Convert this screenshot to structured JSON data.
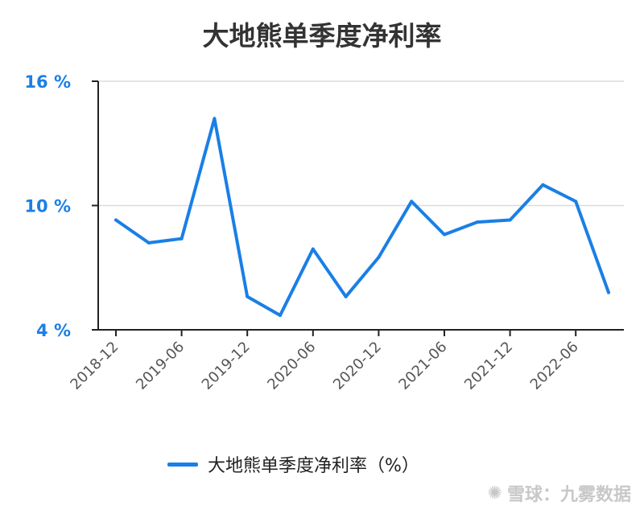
{
  "chart_data": {
    "type": "line",
    "title": "大地熊单季度净利率",
    "xlabel": "",
    "ylabel": "",
    "y_ticks": [
      "16 %",
      "10 %",
      "4 %"
    ],
    "ylim": [
      4,
      16
    ],
    "x_tick_labels": [
      "2018-12",
      "2019-06",
      "2019-12",
      "2020-06",
      "2020-12",
      "2021-06",
      "2021-12",
      "2022-06"
    ],
    "x": [
      "2018-12",
      "2019-03",
      "2019-06",
      "2019-09",
      "2019-12",
      "2020-03",
      "2020-06",
      "2020-09",
      "2020-12",
      "2021-03",
      "2021-06",
      "2021-09",
      "2021-12",
      "2022-03",
      "2022-06",
      "2022-09"
    ],
    "series": [
      {
        "name": "大地熊单季度净利率（%）",
        "color": "#1a7fe6",
        "values": [
          9.3,
          8.2,
          8.4,
          14.2,
          5.6,
          4.7,
          7.9,
          5.6,
          7.5,
          10.2,
          8.6,
          9.2,
          9.3,
          11.0,
          10.2,
          5.8
        ]
      }
    ],
    "grid": true,
    "legend_position": "bottom"
  },
  "watermark": "雪球：九雾数据"
}
